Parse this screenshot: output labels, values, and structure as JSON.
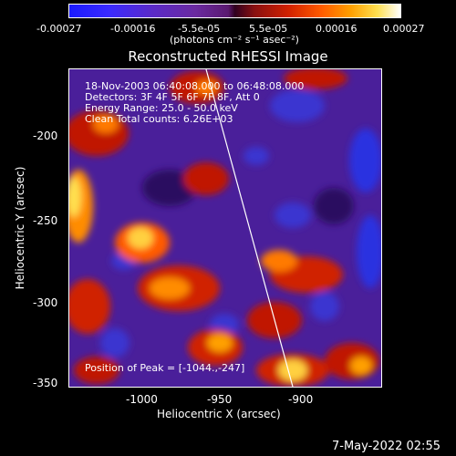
{
  "colorbar": {
    "ticks": [
      "-0.00027",
      "-0.00016",
      "-5.5e-05",
      "5.5e-05",
      "0.00016",
      "0.00027"
    ],
    "unit_label": "(photons cm⁻² s⁻¹ asec⁻²)"
  },
  "title": "Reconstructed RHESSI Image",
  "annotations": {
    "time": "18-Nov-2003 06:40:08.000 to 06:48:08.000",
    "detectors": "Detectors: 3F 4F 5F 6F 7F 8F, Att 0",
    "energy": "Energy Range: 25.0 - 50.0 keV",
    "clean": "Clean     Total counts: 6.26E+03",
    "peak": "Position of Peak = [-1044.,-247]"
  },
  "x_axis": {
    "label": "Heliocentric X (arcsec)",
    "ticks": [
      "-1000",
      "-950",
      "-900"
    ]
  },
  "y_axis": {
    "label": "Heliocentric Y (arcsec)",
    "ticks": [
      "-200",
      "-250",
      "-300",
      "-350"
    ]
  },
  "footer_timestamp": "7-May-2022 02:55",
  "colors": {
    "negative": "#1a1aff",
    "background_purple": "#4a1f9a",
    "hot_low": "#d02000",
    "hot_mid": "#ff8c00",
    "hot_high": "#ffe050",
    "limb_line": "#ffffff"
  }
}
